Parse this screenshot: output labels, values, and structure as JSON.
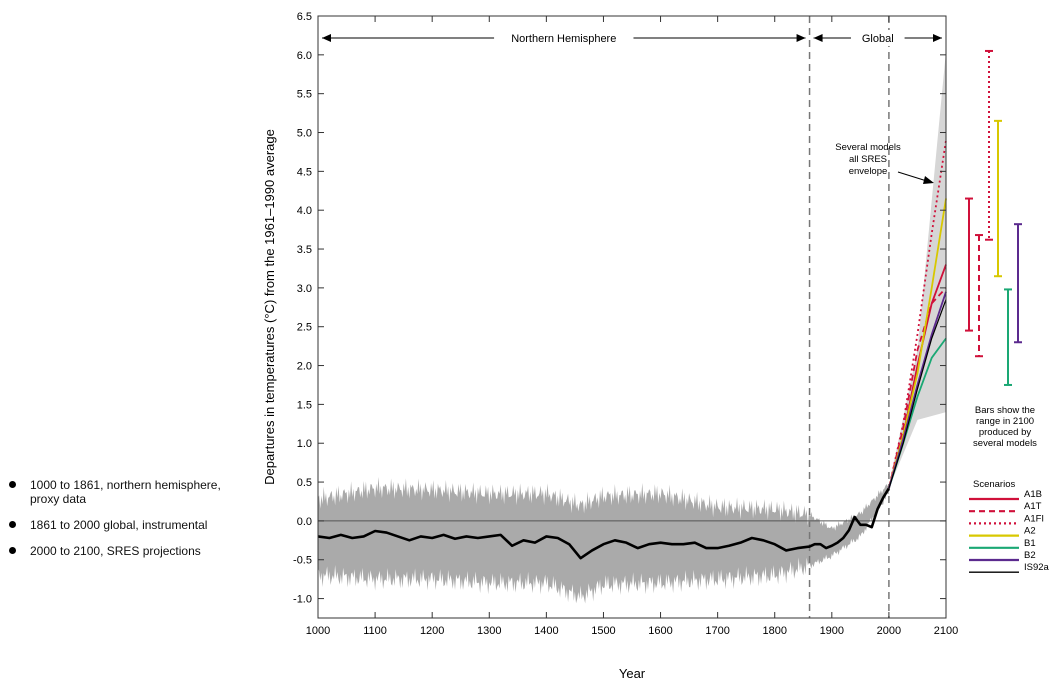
{
  "bullets": [
    "1000 to 1861, northern hemisphere, proxy data",
    "1861 to 2000 global, instrumental",
    "2000 to 2100, SRES projections"
  ],
  "chart_data": {
    "type": "line",
    "xlabel": "Year",
    "ylabel": "Departures in temperatures (°C) from the 1961–1990 average",
    "xlim": [
      1000,
      2100
    ],
    "ylim": [
      -1.25,
      6.5
    ],
    "xticks": [
      1000,
      1100,
      1200,
      1300,
      1400,
      1500,
      1600,
      1700,
      1800,
      1900,
      2000,
      2100
    ],
    "yticks": [
      -1.0,
      -0.5,
      0.0,
      0.5,
      1.0,
      1.5,
      2.0,
      2.5,
      3.0,
      3.5,
      4.0,
      4.5,
      5.0,
      5.5,
      6.0,
      6.5
    ],
    "vlines": [
      1861,
      2000
    ],
    "regions": [
      {
        "label": "Northern Hemisphere",
        "from": 1000,
        "to": 1861
      },
      {
        "label": "Global",
        "from": 1861,
        "to": 2100
      }
    ],
    "annotation": "Several models all SRES envelope",
    "bars_caption": "Bars show the range in 2100 produced by several models",
    "legend_title": "Scenarios",
    "historical": {
      "x": [
        1000,
        1020,
        1040,
        1060,
        1080,
        1100,
        1120,
        1140,
        1160,
        1180,
        1200,
        1220,
        1240,
        1260,
        1280,
        1300,
        1320,
        1340,
        1360,
        1380,
        1400,
        1420,
        1440,
        1460,
        1480,
        1500,
        1520,
        1540,
        1560,
        1580,
        1600,
        1620,
        1640,
        1660,
        1680,
        1700,
        1720,
        1740,
        1760,
        1780,
        1800,
        1820,
        1840,
        1861,
        1870,
        1880,
        1890,
        1900,
        1910,
        1920,
        1930,
        1940,
        1950,
        1960,
        1970,
        1980,
        1990,
        2000
      ],
      "y": [
        -0.2,
        -0.22,
        -0.18,
        -0.22,
        -0.2,
        -0.13,
        -0.15,
        -0.2,
        -0.25,
        -0.2,
        -0.22,
        -0.18,
        -0.23,
        -0.2,
        -0.22,
        -0.2,
        -0.18,
        -0.32,
        -0.25,
        -0.28,
        -0.2,
        -0.22,
        -0.3,
        -0.48,
        -0.38,
        -0.3,
        -0.25,
        -0.28,
        -0.35,
        -0.3,
        -0.28,
        -0.3,
        -0.3,
        -0.28,
        -0.35,
        -0.35,
        -0.32,
        -0.28,
        -0.22,
        -0.25,
        -0.3,
        -0.38,
        -0.35,
        -0.33,
        -0.3,
        -0.3,
        -0.35,
        -0.32,
        -0.28,
        -0.22,
        -0.12,
        0.05,
        -0.05,
        -0.05,
        -0.08,
        0.15,
        0.3,
        0.42
      ]
    },
    "uncertainty_band": {
      "x": [
        1000,
        1100,
        1200,
        1300,
        1400,
        1460,
        1500,
        1600,
        1700,
        1800,
        1861,
        1900,
        1950,
        2000
      ],
      "upper": [
        0.28,
        0.42,
        0.4,
        0.35,
        0.35,
        0.2,
        0.32,
        0.35,
        0.18,
        0.15,
        0.08,
        -0.1,
        0.1,
        0.48
      ],
      "lower": [
        -0.7,
        -0.75,
        -0.75,
        -0.8,
        -0.8,
        -0.98,
        -0.82,
        -0.8,
        -0.75,
        -0.7,
        -0.58,
        -0.45,
        -0.2,
        0.36
      ]
    },
    "envelope": {
      "x": [
        2000,
        2050,
        2100
      ],
      "upper": [
        0.45,
        2.2,
        6.05
      ],
      "lower": [
        0.42,
        1.3,
        1.4
      ]
    },
    "scenarios": [
      {
        "name": "A1B",
        "color": "#d0103a",
        "style": "solid",
        "x": [
          2000,
          2025,
          2050,
          2075,
          2100
        ],
        "y": [
          0.42,
          1.1,
          2.0,
          2.8,
          3.3
        ]
      },
      {
        "name": "A1T",
        "color": "#d0103a",
        "style": "dashed",
        "x": [
          2000,
          2025,
          2050,
          2075,
          2100
        ],
        "y": [
          0.42,
          1.2,
          2.2,
          2.8,
          3.0
        ]
      },
      {
        "name": "A1FI",
        "color": "#d0103a",
        "style": "dotted",
        "x": [
          2000,
          2025,
          2050,
          2075,
          2100
        ],
        "y": [
          0.42,
          1.25,
          2.4,
          3.7,
          4.9
        ]
      },
      {
        "name": "A2",
        "color": "#d8c800",
        "style": "solid",
        "x": [
          2000,
          2025,
          2050,
          2075,
          2100
        ],
        "y": [
          0.42,
          1.1,
          1.9,
          3.0,
          4.15
        ]
      },
      {
        "name": "B1",
        "color": "#1aa874",
        "style": "solid",
        "x": [
          2000,
          2025,
          2050,
          2075,
          2100
        ],
        "y": [
          0.42,
          1.0,
          1.6,
          2.1,
          2.35
        ]
      },
      {
        "name": "B2",
        "color": "#5b2a8e",
        "style": "solid",
        "x": [
          2000,
          2025,
          2050,
          2075,
          2100
        ],
        "y": [
          0.42,
          1.05,
          1.75,
          2.4,
          2.95
        ]
      },
      {
        "name": "IS92a",
        "color": "#000000",
        "style": "solid",
        "x": [
          2000,
          2025,
          2050,
          2075,
          2100
        ],
        "y": [
          0.42,
          1.0,
          1.7,
          2.35,
          2.85
        ]
      }
    ],
    "range_bars": [
      {
        "name": "A1B",
        "color": "#d0103a",
        "style": "solid",
        "min": 2.45,
        "max": 4.15
      },
      {
        "name": "A1T",
        "color": "#d0103a",
        "style": "dashed",
        "min": 2.12,
        "max": 3.68
      },
      {
        "name": "A1FI",
        "color": "#d0103a",
        "style": "dotted",
        "min": 3.62,
        "max": 6.05
      },
      {
        "name": "A2",
        "color": "#d8c800",
        "style": "solid",
        "min": 3.15,
        "max": 5.15
      },
      {
        "name": "B1",
        "color": "#1aa874",
        "style": "solid",
        "min": 1.75,
        "max": 2.98
      },
      {
        "name": "B2",
        "color": "#5b2a8e",
        "style": "solid",
        "min": 2.3,
        "max": 3.82
      }
    ],
    "colors": {
      "band": "#aaaaaa",
      "envelope": "#d6d6d6",
      "line": "#000000"
    }
  }
}
